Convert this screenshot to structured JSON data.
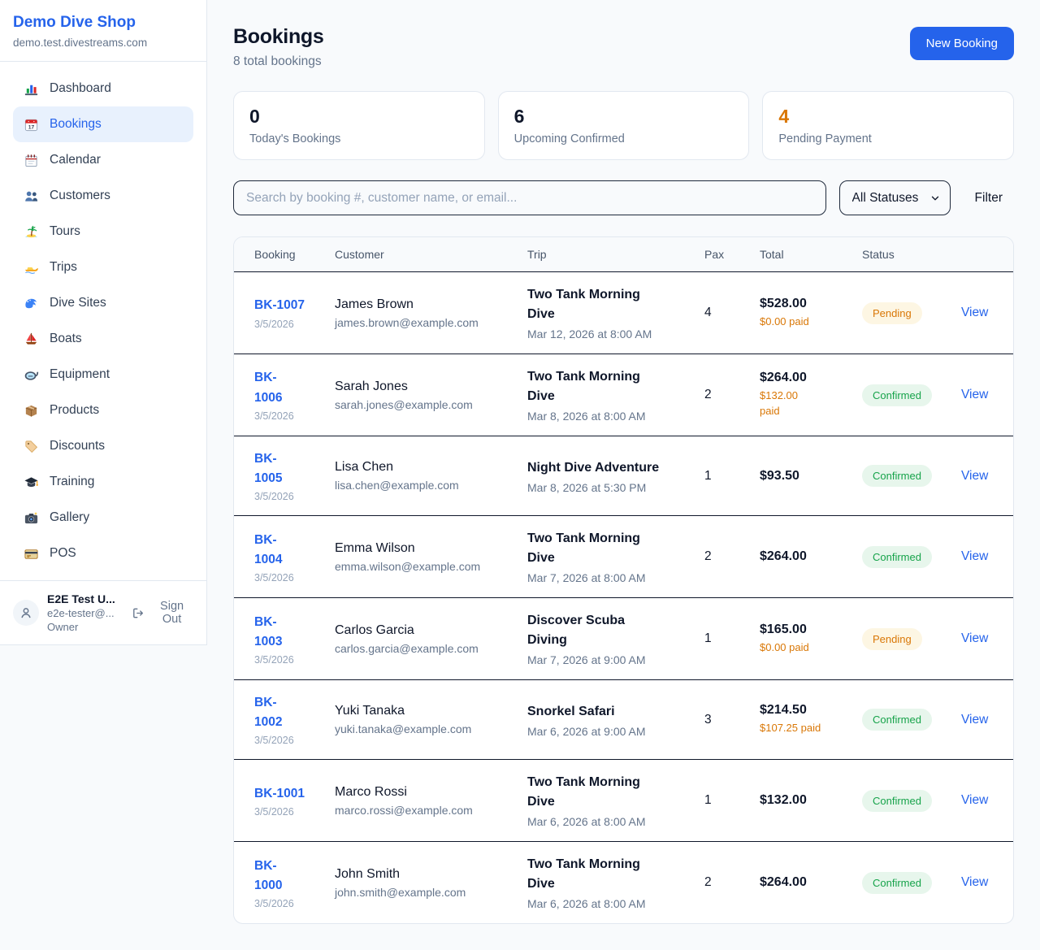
{
  "colors": {
    "accent_blue": "#2563eb",
    "status_pending_text": "#d97706",
    "status_pending_bg": "#fdf6e3",
    "status_confirmed_text": "#16a34a",
    "status_confirmed_bg": "#e7f6ec",
    "page_bg": "#f8fafc"
  },
  "sidebar": {
    "shop_name": "Demo Dive Shop",
    "shop_domain": "demo.test.divestreams.com",
    "items": [
      {
        "label": "Dashboard",
        "icon": "bar-chart-icon",
        "active": false
      },
      {
        "label": "Bookings",
        "icon": "calendar-icon",
        "active": true
      },
      {
        "label": "Calendar",
        "icon": "spiral-calendar-icon",
        "active": false
      },
      {
        "label": "Customers",
        "icon": "users-icon",
        "active": false
      },
      {
        "label": "Tours",
        "icon": "island-icon",
        "active": false
      },
      {
        "label": "Trips",
        "icon": "speedboat-icon",
        "active": false
      },
      {
        "label": "Dive Sites",
        "icon": "wave-icon",
        "active": false
      },
      {
        "label": "Boats",
        "icon": "sailboat-icon",
        "active": false
      },
      {
        "label": "Equipment",
        "icon": "dive-mask-icon",
        "active": false
      },
      {
        "label": "Products",
        "icon": "package-icon",
        "active": false
      },
      {
        "label": "Discounts",
        "icon": "tag-icon",
        "active": false
      },
      {
        "label": "Training",
        "icon": "graduation-cap-icon",
        "active": false
      },
      {
        "label": "Gallery",
        "icon": "camera-icon",
        "active": false
      },
      {
        "label": "POS",
        "icon": "credit-card-icon",
        "active": false
      }
    ],
    "user": {
      "name": "E2E Test U...",
      "email": "e2e-tester@...",
      "role": "Owner",
      "sign_out_label": "Sign Out"
    }
  },
  "header": {
    "title": "Bookings",
    "subtitle": "8 total bookings",
    "new_booking_label": "New Booking"
  },
  "stats": [
    {
      "value": "0",
      "label": "Today's Bookings",
      "accent": false
    },
    {
      "value": "6",
      "label": "Upcoming Confirmed",
      "accent": false
    },
    {
      "value": "4",
      "label": "Pending Payment",
      "accent": true
    }
  ],
  "filters": {
    "search_placeholder": "Search by booking #, customer name, or email...",
    "status_selected": "All Statuses",
    "filter_label": "Filter"
  },
  "table": {
    "columns": [
      "Booking",
      "Customer",
      "Trip",
      "Pax",
      "Total",
      "Status"
    ],
    "rows": [
      {
        "id": "BK-1007",
        "date": "3/5/2026",
        "customer_name": "James Brown",
        "customer_email": "james.brown@example.com",
        "trip": "Two Tank Morning\nDive",
        "trip_datetime": "Mar 12, 2026 at 8:00 AM",
        "pax": "4",
        "total": "$528.00",
        "paid": "$0.00 paid",
        "status": "Pending",
        "action": "View"
      },
      {
        "id": "BK-\n1006",
        "date": "3/5/2026",
        "customer_name": "Sarah Jones",
        "customer_email": "sarah.jones@example.com",
        "trip": "Two Tank Morning\nDive",
        "trip_datetime": "Mar 8, 2026 at 8:00 AM",
        "pax": "2",
        "total": "$264.00",
        "paid": "$132.00\npaid",
        "status": "Confirmed",
        "action": "View"
      },
      {
        "id": "BK-\n1005",
        "date": "3/5/2026",
        "customer_name": "Lisa Chen",
        "customer_email": "lisa.chen@example.com",
        "trip": "Night Dive Adventure",
        "trip_datetime": "Mar 8, 2026 at 5:30 PM",
        "pax": "1",
        "total": "$93.50",
        "paid": "",
        "status": "Confirmed",
        "action": "View"
      },
      {
        "id": "BK-\n1004",
        "date": "3/5/2026",
        "customer_name": "Emma Wilson",
        "customer_email": "emma.wilson@example.com",
        "trip": "Two Tank Morning\nDive",
        "trip_datetime": "Mar 7, 2026 at 8:00 AM",
        "pax": "2",
        "total": "$264.00",
        "paid": "",
        "status": "Confirmed",
        "action": "View"
      },
      {
        "id": "BK-\n1003",
        "date": "3/5/2026",
        "customer_name": "Carlos Garcia",
        "customer_email": "carlos.garcia@example.com",
        "trip": "Discover Scuba\nDiving",
        "trip_datetime": "Mar 7, 2026 at 9:00 AM",
        "pax": "1",
        "total": "$165.00",
        "paid": "$0.00 paid",
        "status": "Pending",
        "action": "View"
      },
      {
        "id": "BK-\n1002",
        "date": "3/5/2026",
        "customer_name": "Yuki Tanaka",
        "customer_email": "yuki.tanaka@example.com",
        "trip": "Snorkel Safari",
        "trip_datetime": "Mar 6, 2026 at 9:00 AM",
        "pax": "3",
        "total": "$214.50",
        "paid": "$107.25 paid",
        "status": "Confirmed",
        "action": "View"
      },
      {
        "id": "BK-1001",
        "date": "3/5/2026",
        "customer_name": "Marco Rossi",
        "customer_email": "marco.rossi@example.com",
        "trip": "Two Tank Morning\nDive",
        "trip_datetime": "Mar 6, 2026 at 8:00 AM",
        "pax": "1",
        "total": "$132.00",
        "paid": "",
        "status": "Confirmed",
        "action": "View"
      },
      {
        "id": "BK-\n1000",
        "date": "3/5/2026",
        "customer_name": "John Smith",
        "customer_email": "john.smith@example.com",
        "trip": "Two Tank Morning\nDive",
        "trip_datetime": "Mar 6, 2026 at 8:00 AM",
        "pax": "2",
        "total": "$264.00",
        "paid": "",
        "status": "Confirmed",
        "action": "View"
      }
    ]
  }
}
